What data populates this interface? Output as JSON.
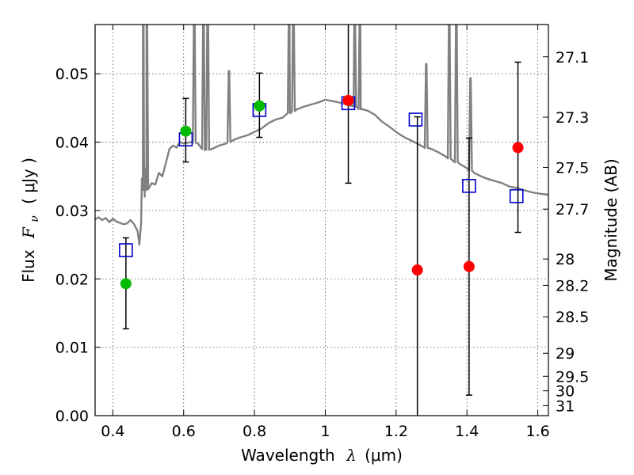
{
  "chart_data": {
    "type": "scatter",
    "xlabel": "Wavelength",
    "xlabel_symbol": "λ",
    "xlabel_unit": "(μm)",
    "ylabel": "Flux",
    "ylabel_symbol": "F",
    "ylabel_subscript": "ν",
    "ylabel_unit": "( μJy )",
    "y2label": "Magnitude (AB)",
    "xlim": [
      0.35,
      1.63
    ],
    "ylim": [
      0.0,
      0.0572
    ],
    "grid": true,
    "x_ticks": [
      0.4,
      0.6,
      0.8,
      1.0,
      1.2,
      1.4,
      1.6
    ],
    "x_tick_labels": [
      "0.4",
      "0.6",
      "0.8",
      "1",
      "1.2",
      "1.4",
      "1.6"
    ],
    "y_ticks": [
      0.0,
      0.01,
      0.02,
      0.03,
      0.04,
      0.05
    ],
    "y_tick_labels": [
      "0.00",
      "0.01",
      "0.02",
      "0.03",
      "0.04",
      "0.05"
    ],
    "y2_ticks": [
      {
        "label": "27.1",
        "mag": 27.1
      },
      {
        "label": "27.3",
        "mag": 27.3
      },
      {
        "label": "27.5",
        "mag": 27.5
      },
      {
        "label": "27.7",
        "mag": 27.7
      },
      {
        "label": "28",
        "mag": 28.0
      },
      {
        "label": "28.2",
        "mag": 28.2
      },
      {
        "label": "28.5",
        "mag": 28.5
      },
      {
        "label": "29",
        "mag": 29.0
      },
      {
        "label": "29.5",
        "mag": 29.5
      },
      {
        "label": "30",
        "mag": 30.0
      },
      {
        "label": "31",
        "mag": 31.0
      }
    ],
    "series": [
      {
        "kind": "line",
        "color": "#808080",
        "x": [
          0.35,
          0.36,
          0.37,
          0.38,
          0.39,
          0.4,
          0.41,
          0.42,
          0.43,
          0.44,
          0.45,
          0.46,
          0.47,
          0.475,
          0.48,
          0.485,
          0.488,
          0.49,
          0.492,
          0.495,
          0.5,
          0.51,
          0.52,
          0.53,
          0.54,
          0.55,
          0.56,
          0.57,
          0.58,
          0.59,
          0.6,
          0.62,
          0.64,
          0.66,
          0.68,
          0.7,
          0.72,
          0.74,
          0.76,
          0.78,
          0.8,
          0.82,
          0.84,
          0.86,
          0.88,
          0.9,
          0.92,
          0.94,
          0.96,
          0.98,
          1.0,
          1.02,
          1.04,
          1.06,
          1.08,
          1.1,
          1.12,
          1.14,
          1.16,
          1.18,
          1.2,
          1.22,
          1.24,
          1.26,
          1.28,
          1.3,
          1.32,
          1.34,
          1.36,
          1.38,
          1.4,
          1.42,
          1.44,
          1.46,
          1.48,
          1.5,
          1.52,
          1.54,
          1.56,
          1.58,
          1.6,
          1.63
        ],
        "y": [
          0.0287,
          0.029,
          0.0286,
          0.0289,
          0.0283,
          0.0288,
          0.0284,
          0.0282,
          0.028,
          0.0281,
          0.0286,
          0.028,
          0.027,
          0.025,
          0.0282,
          0.033,
          0.038,
          0.032,
          0.036,
          0.033,
          0.0335,
          0.034,
          0.0338,
          0.0355,
          0.035,
          0.037,
          0.039,
          0.0395,
          0.0392,
          0.04,
          0.0398,
          0.04,
          0.0398,
          0.0388,
          0.039,
          0.0395,
          0.0398,
          0.0403,
          0.0407,
          0.041,
          0.0415,
          0.042,
          0.0428,
          0.0433,
          0.0436,
          0.0443,
          0.0448,
          0.0452,
          0.0455,
          0.0458,
          0.0462,
          0.046,
          0.0458,
          0.0455,
          0.0453,
          0.0448,
          0.0446,
          0.044,
          0.043,
          0.0423,
          0.0415,
          0.0408,
          0.0403,
          0.0398,
          0.0392,
          0.039,
          0.0385,
          0.0379,
          0.0373,
          0.0368,
          0.0362,
          0.0355,
          0.035,
          0.0346,
          0.0343,
          0.034,
          0.0335,
          0.0333,
          0.033,
          0.0327,
          0.0325,
          0.0323
        ]
      },
      {
        "kind": "squares",
        "color": "#0000cc",
        "x": [
          0.437,
          0.606,
          0.814,
          1.065,
          1.255,
          1.406,
          1.54
        ],
        "y": [
          0.0242,
          0.0404,
          0.0447,
          0.0457,
          0.0433,
          0.0336,
          0.0321
        ]
      },
      {
        "kind": "circles",
        "color": "#00bb00",
        "x": [
          0.437,
          0.606,
          0.814
        ],
        "y": [
          0.0193,
          0.0416,
          0.0453
        ]
      },
      {
        "kind": "circles",
        "color": "#ff0000",
        "x": [
          1.065,
          1.26,
          1.406,
          1.544
        ],
        "y": [
          0.0461,
          0.0213,
          0.0218,
          0.0392
        ]
      },
      {
        "kind": "errorbars",
        "color": "#000000",
        "x": [
          0.437,
          0.606,
          0.814,
          1.065,
          1.26,
          1.406,
          1.544
        ],
        "low": [
          0.0127,
          0.0371,
          0.0407,
          0.034,
          0.0,
          0.003,
          0.0268
        ],
        "high": [
          0.026,
          0.0464,
          0.0501,
          0.0572,
          0.0437,
          0.0406,
          0.0517
        ],
        "capped_high": [
          true,
          true,
          true,
          false,
          true,
          true,
          true
        ],
        "capped_low": [
          true,
          true,
          true,
          true,
          false,
          true,
          true
        ]
      }
    ],
    "spikes": [
      {
        "x": 0.486,
        "peak": 0.0572,
        "width": 0.004
      },
      {
        "x": 0.496,
        "peak": 0.0572,
        "width": 0.004
      },
      {
        "x": 0.63,
        "peak": 0.0572,
        "width": 0.004
      },
      {
        "x": 0.656,
        "peak": 0.0572,
        "width": 0.004
      },
      {
        "x": 0.668,
        "peak": 0.0572,
        "width": 0.004
      },
      {
        "x": 0.728,
        "peak": 0.048,
        "width": 0.004
      },
      {
        "x": 0.898,
        "peak": 0.0572,
        "width": 0.004
      },
      {
        "x": 0.91,
        "peak": 0.0572,
        "width": 0.004
      },
      {
        "x": 1.083,
        "peak": 0.0572,
        "width": 0.004
      },
      {
        "x": 1.098,
        "peak": 0.0572,
        "width": 0.004
      },
      {
        "x": 1.285,
        "peak": 0.049,
        "width": 0.004
      },
      {
        "x": 1.35,
        "peak": 0.0572,
        "width": 0.004
      },
      {
        "x": 1.37,
        "peak": 0.0572,
        "width": 0.004
      },
      {
        "x": 1.41,
        "peak": 0.047,
        "width": 0.004
      }
    ]
  }
}
